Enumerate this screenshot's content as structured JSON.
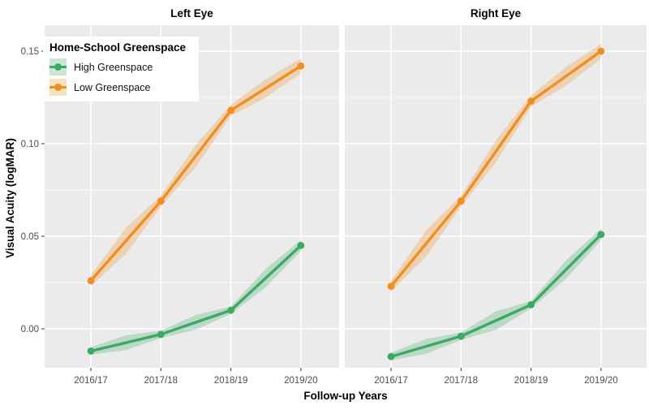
{
  "figure": {
    "background": "#FFFFFF",
    "panel_background": "#EBEBEB",
    "grid_color": "#FFFFFF",
    "tick_mark_color": "#333333",
    "tick_label_color": "#4D4D4D",
    "ribbon_alpha": 0.27
  },
  "chart_data": {
    "type": "line",
    "facet_titles": [
      "Left Eye",
      "Right Eye"
    ],
    "categories": [
      "2016/17",
      "2017/18",
      "2018/19",
      "2019/20"
    ],
    "xlabel": "Follow-up Years",
    "ylabel": "Visual Acuity (logMAR)",
    "y_ticks": [
      {
        "value": 0.0,
        "label": "0.00"
      },
      {
        "value": 0.05,
        "label": "0.05"
      },
      {
        "value": 0.1,
        "label": "0.10"
      },
      {
        "value": 0.15,
        "label": "0.15"
      }
    ],
    "y_minor_ticks": [
      0.025,
      0.075,
      0.125
    ],
    "ylim": [
      -0.021,
      0.164
    ],
    "grid": "white major and minor gridlines on gray panel",
    "legend_position": "inside top-left of left panel",
    "facets": [
      {
        "title": "Left Eye",
        "series": [
          {
            "name": "High Greenspace",
            "color": "#3BAA63",
            "values": [
              -0.012,
              -0.003,
              0.01,
              0.045
            ],
            "ci_point": [
              0.002,
              0.002,
              0.002,
              0.003
            ],
            "ci_mid": [
              0.004,
              0.004,
              0.005
            ]
          },
          {
            "name": "Low Greenspace",
            "color": "#F28E1D",
            "values": [
              0.026,
              0.069,
              0.118,
              0.142
            ],
            "ci_point": [
              0.003,
              0.003,
              0.003,
              0.004
            ],
            "ci_mid": [
              0.007,
              0.006,
              0.005
            ]
          }
        ]
      },
      {
        "title": "Right Eye",
        "series": [
          {
            "name": "High Greenspace",
            "color": "#3BAA63",
            "values": [
              -0.015,
              -0.004,
              0.013,
              0.051
            ],
            "ci_point": [
              0.002,
              0.002,
              0.002,
              0.003
            ],
            "ci_mid": [
              0.004,
              0.005,
              0.005
            ]
          },
          {
            "name": "Low Greenspace",
            "color": "#F28E1D",
            "values": [
              0.023,
              0.069,
              0.123,
              0.15
            ],
            "ci_point": [
              0.003,
              0.003,
              0.003,
              0.004
            ],
            "ci_mid": [
              0.007,
              0.006,
              0.005
            ]
          }
        ]
      }
    ]
  },
  "legend": {
    "title": "Home-School Greenspace",
    "items": [
      {
        "label": "High Greenspace",
        "line_color": "#3BAA63",
        "fill_color": "#C9E7D2"
      },
      {
        "label": "Low Greenspace",
        "line_color": "#F28E1D",
        "fill_color": "#F9E0BE"
      }
    ]
  }
}
